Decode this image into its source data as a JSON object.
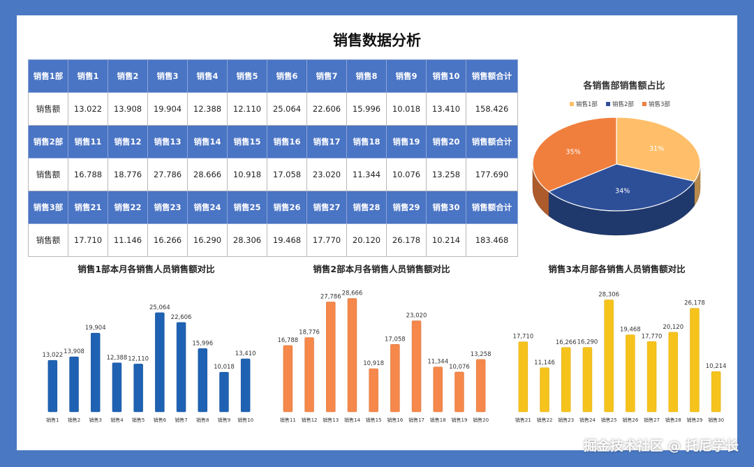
{
  "title": "销售数据分析",
  "table": {
    "blocks": [
      {
        "dept": "销售1部",
        "row_label": "销售额",
        "headers": [
          "销售1",
          "销售2",
          "销售3",
          "销售4",
          "销售5",
          "销售6",
          "销售7",
          "销售8",
          "销售9",
          "销售10"
        ],
        "values": [
          "13.022",
          "13.908",
          "19.904",
          "12.388",
          "12.110",
          "25.064",
          "22.606",
          "15.996",
          "10.018",
          "13.410"
        ],
        "total_label": "销售额合计",
        "total": "158.426"
      },
      {
        "dept": "销售2部",
        "row_label": "销售额",
        "headers": [
          "销售11",
          "销售12",
          "销售13",
          "销售14",
          "销售15",
          "销售16",
          "销售17",
          "销售18",
          "销售19",
          "销售20"
        ],
        "values": [
          "16.788",
          "18.776",
          "27.786",
          "28.666",
          "10.918",
          "17.058",
          "23.020",
          "11.344",
          "10.076",
          "13.258"
        ],
        "total_label": "销售额合计",
        "total": "177.690"
      },
      {
        "dept": "销售3部",
        "row_label": "销售额",
        "headers": [
          "销售21",
          "销售22",
          "销售23",
          "销售24",
          "销售25",
          "销售26",
          "销售27",
          "销售28",
          "销售29",
          "销售30"
        ],
        "values": [
          "17.710",
          "11.146",
          "16.266",
          "16.290",
          "28.306",
          "19.468",
          "17.770",
          "20.120",
          "26.178",
          "10.214"
        ],
        "total_label": "销售额合计",
        "total": "183.468"
      }
    ]
  },
  "chart_data": [
    {
      "type": "pie",
      "title": "各销售部销售额占比",
      "legend_position": "top",
      "categories": [
        "销售1部",
        "销售2部",
        "销售3部"
      ],
      "values": [
        31,
        34,
        35
      ],
      "labels": [
        "31%",
        "34%",
        "35%"
      ],
      "colors": [
        "#ffbf6a",
        "#2d4f98",
        "#f07f3e"
      ]
    },
    {
      "type": "bar",
      "title": "销售1部本月各销售人员销售额对比",
      "categories": [
        "销售1",
        "销售2",
        "销售3",
        "销售4",
        "销售5",
        "销售6",
        "销售7",
        "销售8",
        "销售9",
        "销售10"
      ],
      "values": [
        13022,
        13908,
        19904,
        12388,
        12110,
        25064,
        22606,
        15996,
        10018,
        13410
      ],
      "labels": [
        "13,022",
        "13,908",
        "19,904",
        "12,388",
        "12,110",
        "25,064",
        "22,606",
        "15,996",
        "10,018",
        "13,410"
      ],
      "color": "#1f62b3",
      "ylim": [
        0,
        30000
      ],
      "grid": false
    },
    {
      "type": "bar",
      "title": "销售2部本月各销售人员销售额对比",
      "categories": [
        "销售11",
        "销售12",
        "销售13",
        "销售14",
        "销售15",
        "销售16",
        "销售17",
        "销售18",
        "销售19",
        "销售20"
      ],
      "values": [
        16788,
        18776,
        27786,
        28666,
        10918,
        17058,
        23020,
        11344,
        10076,
        13258
      ],
      "labels": [
        "16,788",
        "18,776",
        "27,786",
        "28,666",
        "10,918",
        "17,058",
        "23,020",
        "11,344",
        "10,076",
        "13,258"
      ],
      "color": "#f5884a",
      "ylim": [
        0,
        30000
      ],
      "grid": false
    },
    {
      "type": "bar",
      "title": "销售3本月部各销售人员销售额对比",
      "categories": [
        "销售21",
        "销售22",
        "销售23",
        "销售24",
        "销售25",
        "销售26",
        "销售27",
        "销售28",
        "销售29",
        "销售30"
      ],
      "values": [
        17710,
        11146,
        16266,
        16290,
        28306,
        19468,
        17770,
        20120,
        26178,
        10214
      ],
      "labels": [
        "17,710",
        "11,146",
        "16,266",
        "16,290",
        "28,306",
        "19,468",
        "17,770",
        "20,120",
        "26,178",
        "10,214"
      ],
      "color": "#f6c31c",
      "ylim": [
        0,
        30000
      ],
      "grid": false
    }
  ],
  "watermark": "掘金技术社区 @ 托尼学长"
}
